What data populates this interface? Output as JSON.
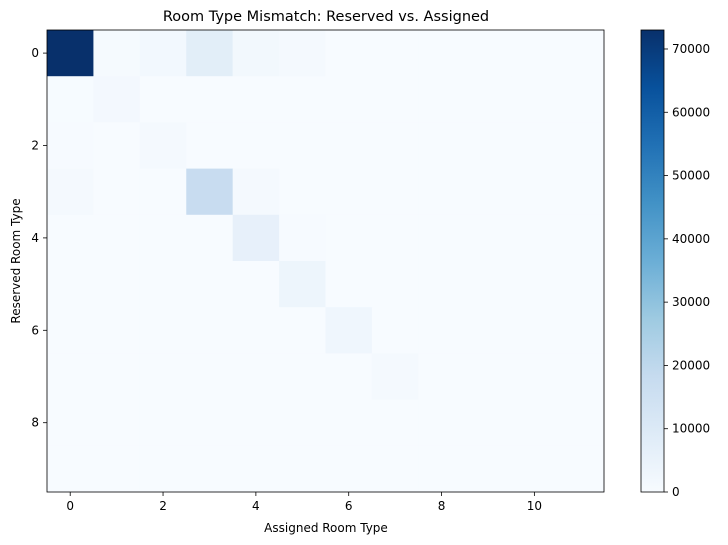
{
  "chart_data": {
    "type": "heatmap",
    "title": "Room Type Mismatch: Reserved vs. Assigned",
    "xlabel": "Assigned Room Type",
    "ylabel": "Reserved Room Type",
    "x_categories": [
      0,
      1,
      2,
      3,
      4,
      5,
      6,
      7,
      8,
      9,
      10,
      11
    ],
    "y_categories": [
      0,
      1,
      2,
      3,
      4,
      5,
      6,
      7,
      8,
      9
    ],
    "x_ticks": [
      "0",
      "2",
      "4",
      "6",
      "8",
      "10"
    ],
    "y_ticks": [
      "0",
      "2",
      "4",
      "6",
      "8"
    ],
    "colormap": "Blues",
    "value_range": [
      0,
      73000
    ],
    "colorbar_ticks": [
      "0",
      "10000",
      "20000",
      "30000",
      "40000",
      "50000",
      "60000",
      "70000"
    ],
    "values": [
      [
        73000,
        800,
        1700,
        7500,
        1800,
        1200,
        0,
        0,
        0,
        0,
        0,
        0
      ],
      [
        200,
        1600,
        0,
        0,
        0,
        0,
        0,
        0,
        0,
        0,
        0,
        0
      ],
      [
        400,
        0,
        1100,
        0,
        0,
        0,
        0,
        0,
        0,
        0,
        0,
        0
      ],
      [
        1000,
        0,
        0,
        17500,
        1000,
        0,
        0,
        0,
        0,
        0,
        0,
        0
      ],
      [
        0,
        0,
        0,
        0,
        6000,
        500,
        0,
        0,
        0,
        0,
        0,
        0
      ],
      [
        0,
        0,
        0,
        0,
        0,
        3500,
        0,
        0,
        0,
        0,
        0,
        0
      ],
      [
        0,
        0,
        0,
        0,
        0,
        0,
        2800,
        0,
        0,
        0,
        0,
        0
      ],
      [
        0,
        0,
        0,
        0,
        0,
        0,
        0,
        1200,
        0,
        0,
        0,
        0
      ],
      [
        0,
        0,
        0,
        0,
        0,
        0,
        0,
        0,
        0,
        0,
        0,
        0
      ],
      [
        0,
        0,
        0,
        0,
        0,
        0,
        0,
        0,
        0,
        0,
        0,
        0
      ]
    ]
  }
}
